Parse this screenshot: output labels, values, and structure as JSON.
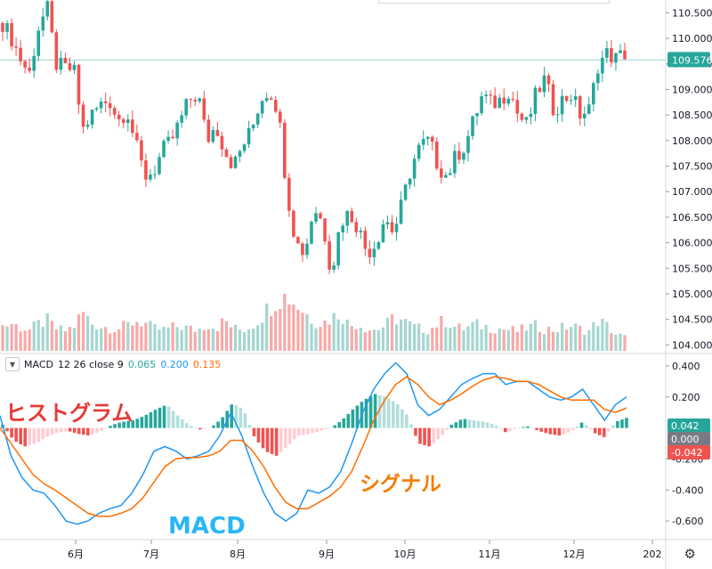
{
  "price_axis": {
    "labels": [
      "110.500",
      "110.000",
      "109.500",
      "109.000",
      "108.500",
      "108.000",
      "107.500",
      "107.000",
      "106.500",
      "106.000",
      "105.500",
      "105.000",
      "104.500",
      "104.000"
    ],
    "last_price": "109.576",
    "last_price_color": "#26a69a"
  },
  "macd_axis": {
    "labels": [
      "0.400",
      "0.200",
      "-0.200",
      "-0.400",
      "-0.600"
    ],
    "badges": [
      {
        "text": "0.042",
        "color": "#26a69a"
      },
      {
        "text": "0.000",
        "color": "#787b86"
      },
      {
        "text": "-0.042",
        "color": "#ef5350"
      }
    ]
  },
  "time_axis": {
    "labels": [
      "6月",
      "7月",
      "8月",
      "9月",
      "10月",
      "11月",
      "12月",
      "202"
    ]
  },
  "legend": {
    "name": "MACD",
    "params": "12 26 close 9",
    "values": [
      {
        "text": "0.065",
        "color": "#26a69a"
      },
      {
        "text": "0.200",
        "color": "#2196f3"
      },
      {
        "text": "0.135",
        "color": "#ff6d00"
      }
    ]
  },
  "annotations": {
    "histogram": {
      "text": "ヒストグラム",
      "color": "#e53935"
    },
    "macd": {
      "text": "MACD",
      "color": "#29b6f6"
    },
    "signal": {
      "text": "シグナル",
      "color": "#f57c00"
    }
  },
  "colors": {
    "up": "#26a69a",
    "down": "#ef5350",
    "macd_line": "#2196f3",
    "signal_line": "#ff6d00",
    "hist_up_strong": "#26a69a",
    "hist_up_weak": "#b2dfdb",
    "hist_down_strong": "#ef5350",
    "hist_down_weak": "#ffcdd2"
  },
  "chart_data": [
    {
      "type": "candlestick",
      "title": "",
      "x_labels": [
        "6月",
        "7月",
        "8月",
        "9月",
        "10月",
        "11月",
        "12月"
      ],
      "ylim": [
        103.85,
        110.75
      ],
      "last_price": 109.576,
      "close_path": [
        110.3,
        110.0,
        109.6,
        109.3,
        110.2,
        110.6,
        109.5,
        109.4,
        109.4,
        108.2,
        108.5,
        108.7,
        108.8,
        108.4,
        108.6,
        107.9,
        107.3,
        107.4,
        107.8,
        108.0,
        108.4,
        108.8,
        108.9,
        108.0,
        108.3,
        107.8,
        107.5,
        107.9,
        108.2,
        108.8,
        109.0,
        108.6,
        107.0,
        106.0,
        105.8,
        106.7,
        106.4,
        105.4,
        106.4,
        106.6,
        106.3,
        105.8,
        106.0,
        106.5,
        106.2,
        106.8,
        107.5,
        107.9,
        108.0,
        107.5,
        107.3,
        107.7,
        107.9,
        108.4,
        108.9,
        108.7,
        108.8,
        109.0,
        108.5,
        108.3,
        108.9,
        109.2,
        108.6,
        108.8,
        108.9,
        108.5,
        108.6,
        109.5,
        109.7,
        109.6,
        109.7
      ],
      "volume_path": [
        0.45,
        0.5,
        0.42,
        0.38,
        0.48,
        0.55,
        0.4,
        0.36,
        0.44,
        0.7,
        0.5,
        0.45,
        0.42,
        0.4,
        0.46,
        0.55,
        0.5,
        0.4,
        0.38,
        0.42,
        0.45,
        0.4,
        0.38,
        0.5,
        0.42,
        0.55,
        0.4,
        0.38,
        0.45,
        0.6,
        0.8,
        0.95,
        1.0,
        0.85,
        0.7,
        0.55,
        0.5,
        0.6,
        0.7,
        0.45,
        0.5,
        0.4,
        0.38,
        0.45,
        0.6,
        0.55,
        0.45,
        0.4,
        0.38,
        0.5,
        0.55,
        0.42,
        0.4,
        0.48,
        0.45,
        0.42,
        0.4,
        0.38,
        0.36,
        0.42,
        0.45,
        0.4,
        0.38,
        0.42,
        0.45,
        0.4,
        0.36,
        0.55,
        0.45,
        0.3,
        0.25
      ]
    },
    {
      "type": "line",
      "title": "",
      "ylim": [
        -0.72,
        0.48
      ],
      "series": [
        {
          "name": "MACD",
          "color": "#2196f3",
          "values": [
            0.08,
            -0.18,
            -0.32,
            -0.4,
            -0.42,
            -0.5,
            -0.6,
            -0.62,
            -0.6,
            -0.55,
            -0.52,
            -0.5,
            -0.42,
            -0.3,
            -0.15,
            -0.12,
            -0.15,
            -0.2,
            -0.18,
            -0.15,
            -0.05,
            0.1,
            -0.05,
            -0.25,
            -0.42,
            -0.55,
            -0.6,
            -0.55,
            -0.4,
            -0.42,
            -0.38,
            -0.28,
            -0.1,
            0.1,
            0.25,
            0.35,
            0.42,
            0.35,
            0.15,
            0.08,
            0.12,
            0.2,
            0.28,
            0.32,
            0.35,
            0.35,
            0.28,
            0.3,
            0.3,
            0.25,
            0.2,
            0.18,
            0.2,
            0.25,
            0.15,
            0.05,
            0.15,
            0.2
          ]
        },
        {
          "name": "シグナル",
          "color": "#ff6d00",
          "values": [
            0.0,
            -0.1,
            -0.2,
            -0.3,
            -0.36,
            -0.4,
            -0.45,
            -0.5,
            -0.55,
            -0.57,
            -0.57,
            -0.55,
            -0.52,
            -0.45,
            -0.35,
            -0.25,
            -0.2,
            -0.19,
            -0.19,
            -0.18,
            -0.15,
            -0.08,
            -0.08,
            -0.15,
            -0.25,
            -0.38,
            -0.48,
            -0.52,
            -0.52,
            -0.48,
            -0.44,
            -0.38,
            -0.28,
            -0.12,
            0.05,
            0.18,
            0.28,
            0.33,
            0.28,
            0.2,
            0.15,
            0.18,
            0.22,
            0.27,
            0.31,
            0.33,
            0.32,
            0.3,
            0.3,
            0.28,
            0.24,
            0.2,
            0.18,
            0.18,
            0.18,
            0.12,
            0.1,
            0.13
          ]
        }
      ],
      "histogram": {
        "name": "ヒストグラム",
        "last": 0.065,
        "values": [
          0.02,
          -0.08,
          -0.12,
          -0.1,
          -0.06,
          -0.03,
          -0.02,
          -0.04,
          -0.05,
          -0.02,
          0.02,
          0.04,
          0.05,
          0.08,
          0.12,
          0.15,
          0.08,
          0.02,
          -0.01,
          0.0,
          0.06,
          0.16,
          0.12,
          -0.06,
          -0.15,
          -0.18,
          -0.12,
          -0.05,
          -0.04,
          -0.02,
          0.0,
          0.05,
          0.12,
          0.18,
          0.22,
          0.2,
          0.16,
          0.08,
          -0.1,
          -0.12,
          -0.06,
          0.02,
          0.06,
          0.05,
          0.04,
          0.02,
          -0.03,
          0.0,
          0.01,
          -0.02,
          -0.04,
          -0.05,
          -0.02,
          0.04,
          -0.03,
          -0.06,
          0.04,
          0.065
        ]
      }
    }
  ]
}
